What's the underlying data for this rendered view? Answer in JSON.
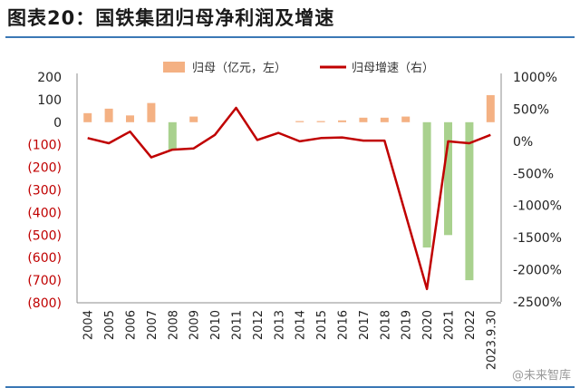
{
  "title": "图表20：国铁集团归母净利润及增速",
  "watermark": "@未来智库",
  "colors": {
    "bar_positive": "#f4b183",
    "bar_negative": "#a9d18e",
    "line": "#c00000",
    "left_axis_negative_label": "#c00000",
    "rule": "#3b78b5"
  },
  "chart_data": {
    "type": "bar",
    "categories": [
      "2004",
      "2005",
      "2006",
      "2007",
      "2008",
      "2009",
      "2010",
      "2011",
      "2012",
      "2013",
      "2014",
      "2015",
      "2016",
      "2017",
      "2018",
      "2019",
      "2020",
      "2021",
      "2022",
      "2023.9.30"
    ],
    "series": [
      {
        "name": "归母（亿元，左）",
        "kind": "bar",
        "axis": "left",
        "values": [
          40,
          60,
          30,
          85,
          -125,
          25,
          null,
          null,
          null,
          null,
          5,
          5,
          8,
          20,
          20,
          25,
          -555,
          -500,
          -700,
          120
        ]
      },
      {
        "name": "归母增速（右）",
        "kind": "line",
        "axis": "right",
        "values": [
          50,
          -30,
          150,
          -250,
          -130,
          -110,
          100,
          520,
          20,
          130,
          0,
          50,
          60,
          10,
          10,
          null,
          -2300,
          0,
          -30,
          100
        ]
      }
    ],
    "left_axis": {
      "ylim": [
        -800,
        200
      ],
      "ticks": [
        200,
        100,
        0,
        -100,
        -200,
        -300,
        -400,
        -500,
        -600,
        -700,
        -800
      ],
      "tick_labels": [
        "200",
        "100",
        "0",
        "(100)",
        "(200)",
        "(300)",
        "(400)",
        "(500)",
        "(600)",
        "(700)",
        "(800)"
      ]
    },
    "right_axis": {
      "ylim": [
        -2500,
        1000
      ],
      "ticks": [
        1000,
        500,
        0,
        -500,
        -1000,
        -1500,
        -2000,
        -2500
      ],
      "tick_labels": [
        "1000%",
        "500%",
        "0%",
        "-500%",
        "-1000%",
        "-1500%",
        "-2000%",
        "-2500%"
      ]
    },
    "legend_position": "top-center",
    "grid": false
  }
}
